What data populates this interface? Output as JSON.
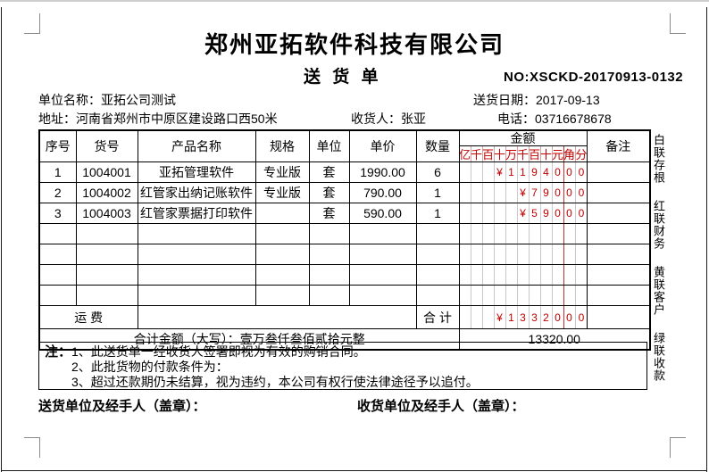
{
  "header": {
    "company_title": "郑州亚拓软件科技有限公司",
    "doc_subtitle": "送 货 单",
    "doc_no": "NO:XSCKD-20170913-0132",
    "unit_label": "单位名称：",
    "unit_value": "亚拓公司测试",
    "date_label": "送货日期：",
    "date_value": "2017-09-13",
    "address_label": "地址：",
    "address_value": "河南省郑州市中原区建设路口西50米",
    "consignee_label": "收货人：",
    "consignee_value": "张亚",
    "phone_label": "电话：",
    "phone_value": "03716678678"
  },
  "table": {
    "col_seq": "序号",
    "col_item_no": "货号",
    "col_product": "产品名称",
    "col_spec": "规格",
    "col_unit": "单位",
    "col_price": "单价",
    "col_qty": "数量",
    "col_amount": "金额",
    "col_remark": "备注",
    "amount_digit_headers": [
      "亿",
      "千",
      "百",
      "十",
      "万",
      "千",
      "百",
      "十",
      "元",
      "角",
      "分"
    ],
    "rows": [
      {
        "seq": "1",
        "item_no": "1004001",
        "product": "亚拓管理软件",
        "spec": "专业版",
        "unit": "套",
        "price": "1990.00",
        "qty": "6",
        "remark": "",
        "amount": [
          "",
          "",
          "",
          "¥",
          "1",
          "1",
          "9",
          "4",
          "0",
          "0",
          "0"
        ]
      },
      {
        "seq": "2",
        "item_no": "1004002",
        "product": "红管家出纳记账软件",
        "spec": "专业版",
        "unit": "套",
        "price": "790.00",
        "qty": "1",
        "remark": "",
        "amount": [
          "",
          "",
          "",
          "",
          "",
          "¥",
          "7",
          "9",
          "0",
          "0",
          "0"
        ]
      },
      {
        "seq": "3",
        "item_no": "1004003",
        "product": "红管家票据打印软件",
        "spec": "",
        "unit": "套",
        "price": "590.00",
        "qty": "1",
        "remark": "",
        "amount": [
          "",
          "",
          "",
          "",
          "",
          "¥",
          "5",
          "9",
          "0",
          "0",
          "0"
        ]
      }
    ],
    "empty_amount": [
      "",
      "",
      "",
      "",
      "",
      "",
      "",
      "",
      "",
      "",
      ""
    ],
    "freight_label": "运  费",
    "total_label": "合 计",
    "total_amount_digits": [
      "",
      "",
      "",
      "¥",
      "1",
      "3",
      "3",
      "2",
      "0",
      "0",
      "0"
    ],
    "amount_words_label": "合计金额（大写）：",
    "amount_words_value": "壹万叁仟叁佰贰拾元整",
    "total_numeric": "13320.00"
  },
  "notes": {
    "label": "注：",
    "line1": "1、此送货单一经收货人签署即视为有效的购销合同。",
    "line2": "2、此批货物的付款条件为：",
    "line3": "3、超过还款期仍未结算，视为违约，本公司有权行使法律途径予以追付。"
  },
  "footer": {
    "sender_label": "送货单位及经手人（盖章）：",
    "receiver_label": "收货单位及经手人（盖章）："
  },
  "side_labels": {
    "copy1": "白联存根",
    "copy2": "红联财务",
    "copy3": "黄联客户",
    "copy4": "绿联收款"
  },
  "colors": {
    "amount_red": "#c00000",
    "decimal_line_red": "#c03030",
    "digit_separator_gray": "#c9c9c9",
    "crop_mark_gray": "#8a8a8a"
  }
}
